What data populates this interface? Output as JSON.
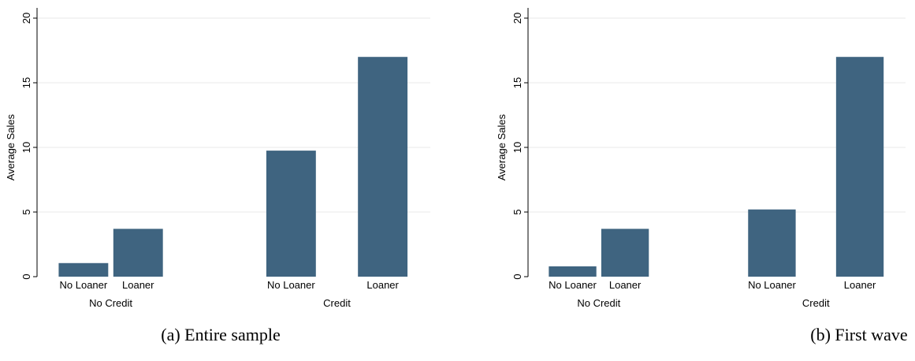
{
  "chart_data": [
    {
      "type": "bar",
      "caption": "(a) Entire sample",
      "ylabel": "Average Sales",
      "ylim": [
        0,
        20
      ],
      "yticks": [
        0,
        5,
        10,
        15,
        20
      ],
      "grid": true,
      "groups": [
        "No Credit",
        "Credit"
      ],
      "categories": [
        "No Loaner",
        "Loaner"
      ],
      "bar_color": "#3f6480",
      "series": [
        {
          "values": [
            1.05,
            3.7
          ]
        },
        {
          "values": [
            9.75,
            17.0
          ]
        }
      ]
    },
    {
      "type": "bar",
      "caption": "(b) First wave",
      "ylabel": "Average Sales",
      "ylim": [
        0,
        20
      ],
      "yticks": [
        0,
        5,
        10,
        15,
        20
      ],
      "grid": true,
      "groups": [
        "No Credit",
        "Credit"
      ],
      "categories": [
        "No Loaner",
        "Loaner"
      ],
      "bar_color": "#3f6480",
      "series": [
        {
          "values": [
            0.8,
            3.7
          ]
        },
        {
          "values": [
            5.2,
            17.0
          ]
        }
      ]
    }
  ]
}
